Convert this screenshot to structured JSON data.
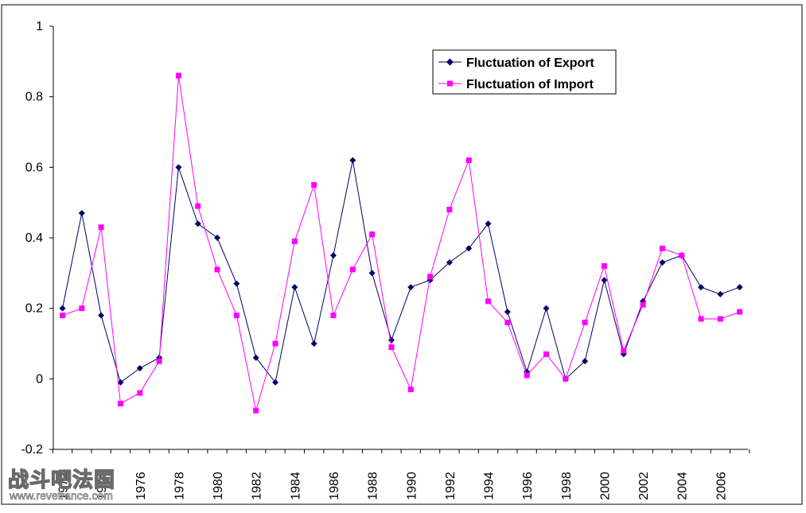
{
  "chart_data": {
    "type": "line",
    "title": "",
    "xlabel": "",
    "ylabel": "",
    "ylim": [
      -0.2,
      1
    ],
    "yticks": [
      -0.2,
      0,
      0.2,
      0.4,
      0.6,
      0.8,
      1
    ],
    "ytick_labels": [
      "-0.2",
      "0",
      "0.2",
      "0.4",
      "0.6",
      "0.8",
      "1"
    ],
    "xlim": [
      1972,
      2007
    ],
    "xtick_labels": [
      "1972",
      "1974",
      "1976",
      "1978",
      "1980",
      "1982",
      "1984",
      "1986",
      "1988",
      "1990",
      "1992",
      "1994",
      "1996",
      "1998",
      "2000",
      "2002",
      "2004",
      "2006"
    ],
    "x": [
      1972,
      1973,
      1974,
      1975,
      1976,
      1977,
      1978,
      1979,
      1980,
      1981,
      1982,
      1983,
      1984,
      1985,
      1986,
      1987,
      1988,
      1989,
      1990,
      1991,
      1992,
      1993,
      1994,
      1995,
      1996,
      1997,
      1998,
      1999,
      2000,
      2001,
      2002,
      2003,
      2004,
      2005,
      2006,
      2007
    ],
    "grid": false,
    "legend_position": "top-right",
    "series": [
      {
        "name": "Fluctuation of Export",
        "color": "#000066",
        "marker": "diamond",
        "values": [
          0.2,
          0.47,
          0.18,
          -0.01,
          0.03,
          0.06,
          0.6,
          0.44,
          0.4,
          0.27,
          0.06,
          -0.01,
          0.26,
          0.1,
          0.35,
          0.62,
          0.3,
          0.11,
          0.26,
          0.28,
          0.33,
          0.37,
          0.44,
          0.19,
          0.02,
          0.2,
          0.0,
          0.05,
          0.28,
          0.07,
          0.22,
          0.33,
          0.35,
          0.26,
          0.24,
          0.26
        ]
      },
      {
        "name": "Fluctuation of Import",
        "color": "#ff00ff",
        "marker": "square",
        "values": [
          0.18,
          0.2,
          0.43,
          -0.07,
          -0.04,
          0.05,
          0.86,
          0.49,
          0.31,
          0.18,
          -0.09,
          0.1,
          0.39,
          0.55,
          0.18,
          0.31,
          0.41,
          0.09,
          -0.03,
          0.29,
          0.48,
          0.62,
          0.22,
          0.16,
          0.01,
          0.07,
          0.0,
          0.16,
          0.32,
          0.08,
          0.21,
          0.37,
          0.35,
          0.17,
          0.17,
          0.19
        ]
      }
    ]
  },
  "watermark": {
    "text": "战斗吧法国",
    "url": "www.revefrance.com"
  }
}
